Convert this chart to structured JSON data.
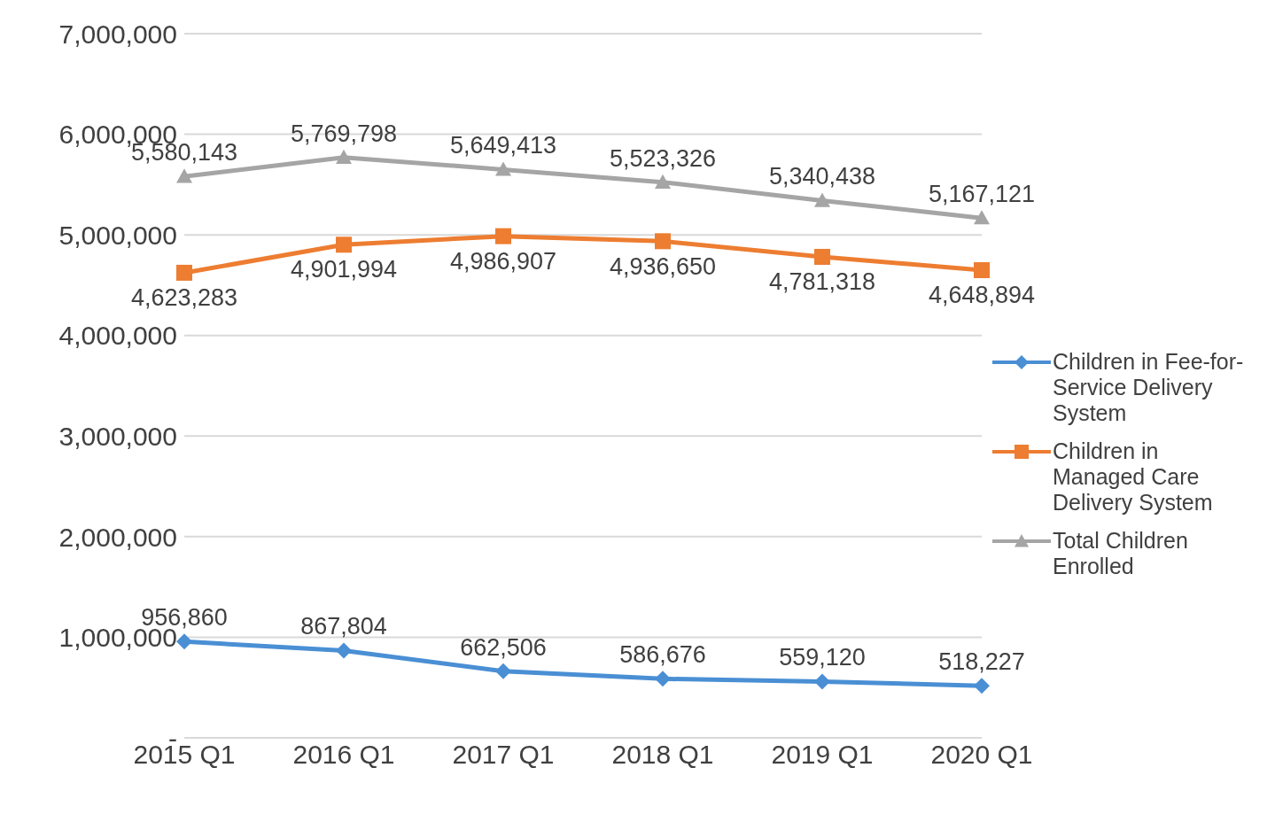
{
  "chart_data": {
    "type": "line",
    "categories": [
      "2015 Q1",
      "2016 Q1",
      "2017 Q1",
      "2018 Q1",
      "2019 Q1",
      "2020 Q1"
    ],
    "series": [
      {
        "name": "Children in Fee-for-Service Delivery System",
        "color": "#4a8fd4",
        "marker": "diamond",
        "values": [
          956860,
          867804,
          662506,
          586676,
          559120,
          518227
        ],
        "value_labels": [
          "956,860",
          "867,804",
          "662,506",
          "586,676",
          "559,120",
          "518,227"
        ]
      },
      {
        "name": "Children in Managed Care Delivery System",
        "color": "#ed7d31",
        "marker": "square",
        "values": [
          4623283,
          4901994,
          4986907,
          4936650,
          4781318,
          4648894
        ],
        "value_labels": [
          "4,623,283",
          "4,901,994",
          "4,986,907",
          "4,936,650",
          "4,781,318",
          "4,648,894"
        ]
      },
      {
        "name": "Total Children Enrolled",
        "color": "#a5a5a5",
        "marker": "triangle",
        "values": [
          5580143,
          5769798,
          5649413,
          5523326,
          5340438,
          5167121
        ],
        "value_labels": [
          "5,580,143",
          "5,769,798",
          "5,649,413",
          "5,523,326",
          "5,340,438",
          "5,167,121"
        ]
      }
    ],
    "ylim": [
      0,
      7000000
    ],
    "yticks": [
      {
        "value": 0,
        "label": "-"
      },
      {
        "value": 1000000,
        "label": "1,000,000"
      },
      {
        "value": 2000000,
        "label": "2,000,000"
      },
      {
        "value": 3000000,
        "label": "3,000,000"
      },
      {
        "value": 4000000,
        "label": "4,000,000"
      },
      {
        "value": 5000000,
        "label": "5,000,000"
      },
      {
        "value": 6000000,
        "label": "6,000,000"
      },
      {
        "value": 7000000,
        "label": "7,000,000"
      }
    ],
    "grid": "y",
    "legend": "right",
    "line_style": "solid"
  }
}
